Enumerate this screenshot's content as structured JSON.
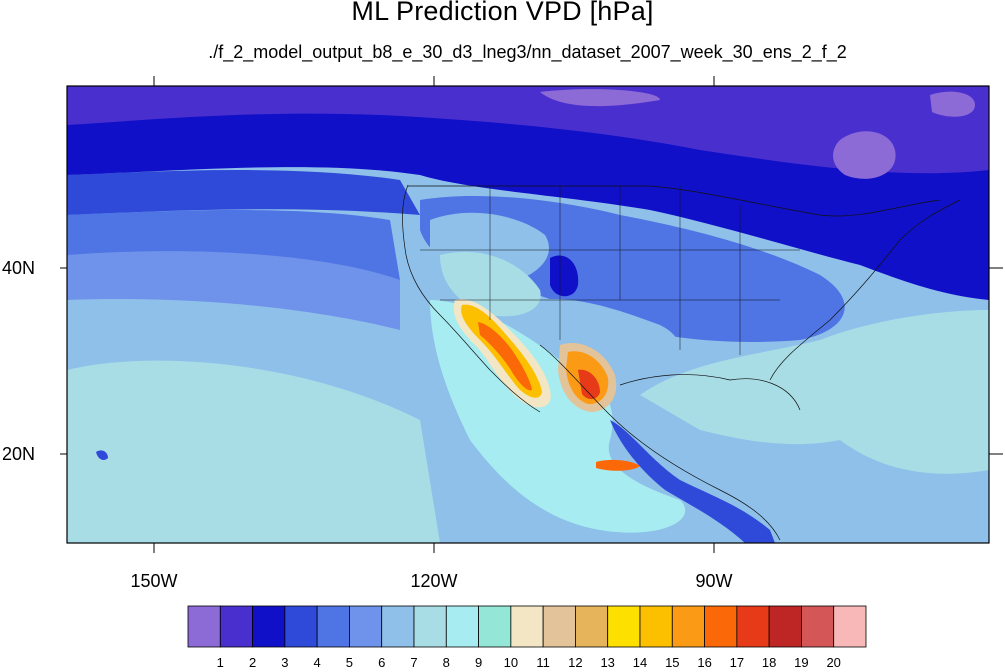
{
  "title": "ML Prediction VPD [hPa]",
  "subtitle": "./f_2_model_output_b8_e_30_d3_lneg3/nn_dataset_2007_week_30_ens_2_f_2",
  "axes": {
    "lat_labels": [
      "40N",
      "20N"
    ],
    "lon_labels": [
      "150W",
      "120W",
      "90W"
    ]
  },
  "colorbar": {
    "labels": [
      "1",
      "2",
      "3",
      "4",
      "5",
      "6",
      "7",
      "8",
      "9",
      "10",
      "11",
      "12",
      "13",
      "14",
      "15",
      "16",
      "17",
      "18",
      "19",
      "20"
    ],
    "colors": [
      "#8d6bd6",
      "#4a2fcf",
      "#1010c8",
      "#2f4ad8",
      "#4f74e4",
      "#6f92ea",
      "#8ec0ea",
      "#a8dde6",
      "#a7ecf0",
      "#94e6d6",
      "#f2e6c4",
      "#e2c39a",
      "#e6b45a",
      "#fde000",
      "#fdc000",
      "#fb9a14",
      "#fb6808",
      "#e63a18",
      "#be2626",
      "#d45656",
      "#f8b8b8"
    ]
  },
  "chart_data": {
    "type": "heatmap",
    "title": "ML Prediction VPD [hPa]",
    "subtitle": "./f_2_model_output_b8_e_30_d3_lneg3/nn_dataset_2007_week_30_ens_2_f_2",
    "variable": "VPD",
    "units": "hPa",
    "xlim": [
      -160,
      -97
    ],
    "ylim": [
      11,
      60
    ],
    "x_ticks": [
      -150,
      -120,
      -90
    ],
    "x_tick_labels": [
      "150W",
      "120W",
      "90W"
    ],
    "y_ticks": [
      40,
      20
    ],
    "y_tick_labels": [
      "40N",
      "20N"
    ],
    "levels": [
      1,
      2,
      3,
      4,
      5,
      6,
      7,
      8,
      9,
      10,
      11,
      12,
      13,
      14,
      15,
      16,
      17,
      18,
      19,
      20
    ],
    "colorbar_orientation": "horizontal-bottom"
  }
}
